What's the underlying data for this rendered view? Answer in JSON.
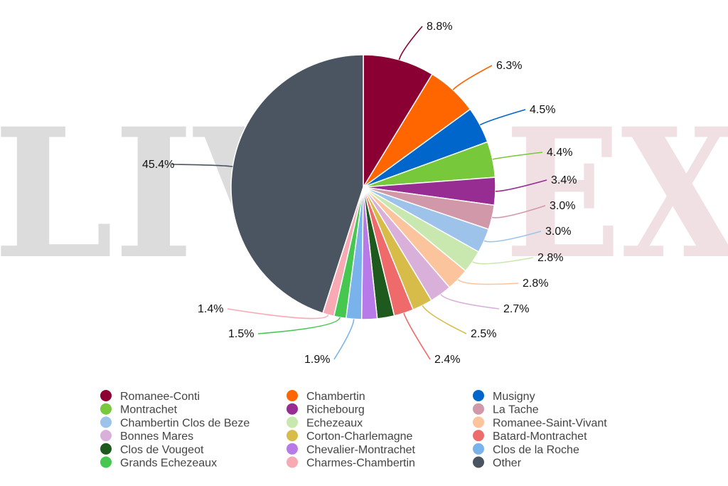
{
  "watermark": {
    "text": "LIV-EX",
    "left_color": "#dcdcdc",
    "right_color": "#f0e0e4"
  },
  "chart_data": {
    "type": "pie",
    "title": "",
    "labels": [
      "Romanee-Conti",
      "Chambertin",
      "Musigny",
      "Montrachet",
      "Richebourg",
      "La Tache",
      "Chambertin Clos de Beze",
      "Echezeaux",
      "Romanee-Saint-Vivant",
      "Bonnes Mares",
      "Corton-Charlemagne",
      "Batard-Montrachet",
      "Clos de Vougeot",
      "Chevalier-Montrachet",
      "Clos de la Roche",
      "Grands Echezeaux",
      "Charmes-Chambertin",
      "Other"
    ],
    "values": [
      8.8,
      6.3,
      4.5,
      4.4,
      3.4,
      3.0,
      3.0,
      2.8,
      2.8,
      2.7,
      2.5,
      2.4,
      2.1,
      1.9,
      1.9,
      1.5,
      1.4,
      45.4
    ],
    "data_labels": [
      "8.8%",
      "6.3%",
      "4.5%",
      "4.4%",
      "3.4%",
      "3.0%",
      "3.0%",
      "2.8%",
      "2.8%",
      "2.7%",
      "2.5%",
      "2.4%",
      "",
      "",
      "1.9%",
      "1.5%",
      "1.4%",
      "45.4%"
    ],
    "colors": [
      "#8b0032",
      "#ff6600",
      "#0066cc",
      "#77c83a",
      "#972c93",
      "#d098a8",
      "#9ec3ea",
      "#c8e8b0",
      "#fbc49c",
      "#d9b0da",
      "#d8bc4a",
      "#ef6a6a",
      "#1e5a1e",
      "#b77ae8",
      "#7ab2ec",
      "#46c850",
      "#f7a9b4",
      "#4a5561"
    ],
    "legend_position": "bottom"
  }
}
